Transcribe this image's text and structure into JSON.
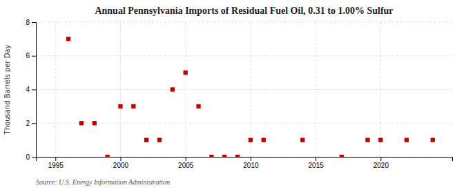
{
  "chart_data": {
    "type": "scatter",
    "title": "Annual Pennsylvania Imports of Residual Fuel Oil, 0.31 to 1.00% Sulfur",
    "ylabel": "Thousand Barrels per Day",
    "annotation": "Source: U.S. Energy Information Administration",
    "x": [
      1996,
      1997,
      1998,
      1999,
      2000,
      2001,
      2002,
      2003,
      2004,
      2005,
      2006,
      2007,
      2008,
      2009,
      2010,
      2011,
      2014,
      2017,
      2019,
      2020,
      2022,
      2024
    ],
    "values": [
      7.0,
      2.0,
      2.0,
      0.0,
      3.0,
      3.0,
      1.0,
      1.0,
      4.0,
      5.0,
      3.0,
      0.0,
      0.0,
      0.0,
      1.0,
      1.0,
      1.0,
      0.0,
      1.0,
      1.0,
      1.0,
      1.0
    ],
    "color": "#c00000",
    "marker": "square",
    "xlim": [
      1993.5,
      2025.5
    ],
    "xticks": [
      1995,
      2000,
      2005,
      2010,
      2015,
      2020
    ],
    "ylim": [
      0,
      8
    ],
    "yticks": [
      0,
      2,
      4,
      6,
      8
    ],
    "grid": true
  }
}
